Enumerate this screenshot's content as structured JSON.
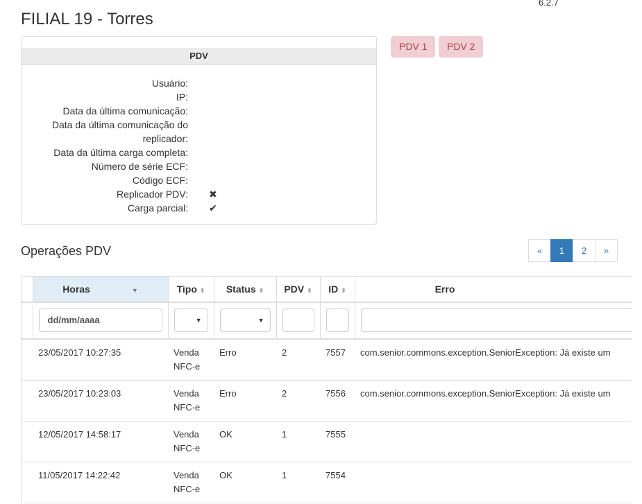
{
  "version": "6.2.7",
  "title": "FILIAL 19 - Torres",
  "panel": {
    "heading": "PDV",
    "fields": [
      {
        "label": "Usuário:",
        "value": ""
      },
      {
        "label": "IP:",
        "value": ""
      },
      {
        "label": "Data da última comunicação:",
        "value": ""
      },
      {
        "label": "Data da última comunicação do replicador:",
        "value": ""
      },
      {
        "label": "Data da última carga completa:",
        "value": ""
      },
      {
        "label": "Número de série ECF:",
        "value": ""
      },
      {
        "label": "Código ECF:",
        "value": ""
      },
      {
        "label": "Replicador PDV:",
        "value": "✖"
      },
      {
        "label": "Carga parcial:",
        "value": "✔"
      }
    ]
  },
  "pdv_buttons": [
    "PDV 1",
    "PDV 2"
  ],
  "section_title": "Operações PDV",
  "pagination": {
    "prev": "«",
    "pages": [
      "1",
      "2"
    ],
    "active": "1",
    "next": "»"
  },
  "table": {
    "columns": [
      "Horas",
      "Tipo",
      "Status",
      "PDV",
      "ID",
      "Erro"
    ],
    "filters": {
      "horas_placeholder": "dd/mm/aaaa"
    },
    "rows": [
      {
        "horas": "23/05/2017 10:27:35",
        "tipo": "Venda NFC-e",
        "status": "Erro",
        "pdv": "2",
        "id": "7557",
        "erro": "com.senior.commons.exception.SeniorException: Já existe um"
      },
      {
        "horas": "23/05/2017 10:23:03",
        "tipo": "Venda NFC-e",
        "status": "Erro",
        "pdv": "2",
        "id": "7556",
        "erro": "com.senior.commons.exception.SeniorException: Já existe um"
      },
      {
        "horas": "12/05/2017 14:58:17",
        "tipo": "Venda NFC-e",
        "status": "OK",
        "pdv": "1",
        "id": "7555",
        "erro": ""
      },
      {
        "horas": "11/05/2017 14:22:42",
        "tipo": "Venda NFC-e",
        "status": "OK",
        "pdv": "1",
        "id": "7554",
        "erro": ""
      }
    ]
  }
}
